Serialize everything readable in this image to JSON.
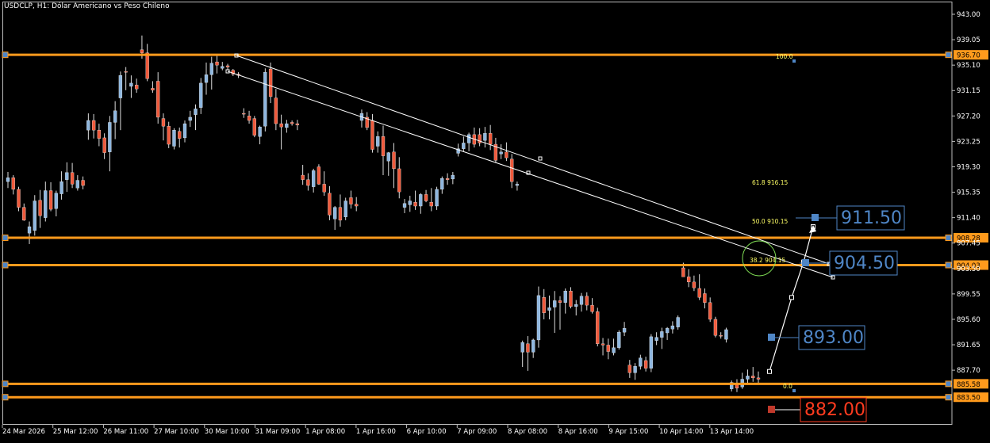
{
  "header": {
    "symbol": "USDCLP",
    "timeframe": "H1",
    "description": "Dólar Americano vs Peso Chileno"
  },
  "colors": {
    "background": "#000000",
    "bull": "#8fb7df",
    "bear": "#ef5a3c",
    "level": "#ff9a1c",
    "trend": "#ffffff",
    "fib_text": "#ffff66",
    "box_text": "#4f86c6",
    "box_red": "#ff3b1f"
  },
  "chart_data": {
    "type": "candlestick",
    "symbol": "USDCLP",
    "timeframe": "H1",
    "y_ticks": [
      943.0,
      939.05,
      935.1,
      931.15,
      927.2,
      923.25,
      919.3,
      915.35,
      911.4,
      907.45,
      903.5,
      899.55,
      895.6,
      891.65,
      887.7
    ],
    "y_range": [
      882.0,
      944.6
    ],
    "x_ticks": [
      "24 Mar 2026",
      "25 Mar 12:00",
      "26 Mar 11:00",
      "27 Mar 10:00",
      "30 Mar 10:00",
      "31 Mar 09:00",
      "1 Apr 08:00",
      "1 Apr 16:00",
      "6 Apr 10:00",
      "7 Apr 09:00",
      "8 Apr 08:00",
      "8 Apr 16:00",
      "9 Apr 15:00",
      "10 Apr 14:00",
      "13 Apr 14:00"
    ],
    "levels": [
      {
        "price": 936.7,
        "label": "936.70"
      },
      {
        "price": 908.28,
        "label": "908.28"
      },
      {
        "price": 904.03,
        "label": "904.03"
      },
      {
        "price": 885.58,
        "label": "885.58"
      },
      {
        "price": 883.5,
        "label": "883.50"
      }
    ],
    "fibonacci": [
      {
        "ratio": "100.0",
        "price": ""
      },
      {
        "ratio": "61.8",
        "price": "916.15"
      },
      {
        "ratio": "50.0",
        "price": "910.15"
      },
      {
        "ratio": "38.2",
        "price": "904.15"
      },
      {
        "ratio": "0.0",
        "price": ""
      }
    ],
    "projection_boxes": [
      {
        "label": "911.50",
        "price": 911.5
      },
      {
        "label": "904.50",
        "price": 904.5
      },
      {
        "label": "893.00",
        "price": 893.0
      },
      {
        "label": "882.00",
        "price": 882.0
      }
    ],
    "projection_path": [
      887.5,
      899.0,
      904.5,
      910.0
    ],
    "candles": [
      [
        917.0,
        918.5,
        916.0,
        917.6
      ],
      [
        917.6,
        918.0,
        915.0,
        915.8
      ],
      [
        915.8,
        916.2,
        912.4,
        913.0
      ],
      [
        913.0,
        913.6,
        910.9,
        911.0
      ],
      [
        909.0,
        910.8,
        907.3,
        910.0
      ],
      [
        909.4,
        914.9,
        908.6,
        914.0
      ],
      [
        914.1,
        915.7,
        909.8,
        911.7
      ],
      [
        911.4,
        917.0,
        910.8,
        915.6
      ],
      [
        915.6,
        916.9,
        912.4,
        912.7
      ],
      [
        912.8,
        915.6,
        911.6,
        915.2
      ],
      [
        915.1,
        918.6,
        914.2,
        917.0
      ],
      [
        917.3,
        920.0,
        915.4,
        918.4
      ],
      [
        918.4,
        919.9,
        916.0,
        916.6
      ],
      [
        916.0,
        918.0,
        915.6,
        917.2
      ],
      [
        917.2,
        917.8,
        915.8,
        916.4
      ],
      [
        925.0,
        927.6,
        923.5,
        926.5
      ],
      [
        926.5,
        927.5,
        923.7,
        925.0
      ],
      [
        925.0,
        926.0,
        922.5,
        923.7
      ],
      [
        923.8,
        924.5,
        920.5,
        921.5
      ],
      [
        921.6,
        927.2,
        918.6,
        926.2
      ],
      [
        926.2,
        929.5,
        923.6,
        928.0
      ],
      [
        930.0,
        934.1,
        925.0,
        933.5
      ],
      [
        934.1,
        934.8,
        931.2,
        934.0
      ],
      [
        931.8,
        933.5,
        930.0,
        932.3
      ],
      [
        932.0,
        933.0,
        930.8,
        931.4
      ],
      [
        937.5,
        939.7,
        936.1,
        937.0
      ],
      [
        937.0,
        938.4,
        932.6,
        933.0
      ],
      [
        931.5,
        932.6,
        930.8,
        931.2
      ],
      [
        932.6,
        934.0,
        926.0,
        927.0
      ],
      [
        926.8,
        927.6,
        923.4,
        925.6
      ],
      [
        925.6,
        926.3,
        922.2,
        922.8
      ],
      [
        922.5,
        925.3,
        922.0,
        925.0
      ],
      [
        924.8,
        925.4,
        922.3,
        923.7
      ],
      [
        923.8,
        926.5,
        923.1,
        926.0
      ],
      [
        926.5,
        928.0,
        925.5,
        927.0
      ],
      [
        927.4,
        929.0,
        925.0,
        928.3
      ],
      [
        928.5,
        933.1,
        927.5,
        932.3
      ],
      [
        932.4,
        935.5,
        930.5,
        933.6
      ],
      [
        933.6,
        936.4,
        931.3,
        935.4
      ],
      [
        935.6,
        936.6,
        933.8,
        935.1
      ],
      [
        934.6,
        935.6,
        934.3,
        934.9
      ],
      [
        935.0,
        935.3,
        934.4,
        934.8
      ],
      [
        934.3,
        934.5,
        933.4,
        933.7
      ],
      [
        933.7,
        934.0,
        933.1,
        933.5
      ],
      [
        927.6,
        928.4,
        926.9,
        927.5
      ],
      [
        927.2,
        928.0,
        926.0,
        926.5
      ],
      [
        926.8,
        927.2,
        923.9,
        924.2
      ],
      [
        924.0,
        925.7,
        922.8,
        925.5
      ],
      [
        925.6,
        934.6,
        924.8,
        934.0
      ],
      [
        934.5,
        935.5,
        929.2,
        930.2
      ],
      [
        930.0,
        931.4,
        925.0,
        926.0
      ],
      [
        926.0,
        927.4,
        922.0,
        925.5
      ],
      [
        925.4,
        926.6,
        924.6,
        926.0
      ],
      [
        926.2,
        926.5,
        925.7,
        926.0
      ],
      [
        926.0,
        926.6,
        925.0,
        925.8
      ],
      [
        918.0,
        919.6,
        916.5,
        917.3
      ],
      [
        917.3,
        918.3,
        915.6,
        916.4
      ],
      [
        916.2,
        919.0,
        915.3,
        918.7
      ],
      [
        919.3,
        919.7,
        916.5,
        916.6
      ],
      [
        916.6,
        918.6,
        914.8,
        915.4
      ],
      [
        915.2,
        916.3,
        911.0,
        911.8
      ],
      [
        911.2,
        913.2,
        909.5,
        913.0
      ],
      [
        913.0,
        915.0,
        910.0,
        911.0
      ],
      [
        911.5,
        914.5,
        911.0,
        914.0
      ],
      [
        914.5,
        915.6,
        912.8,
        913.5
      ],
      [
        913.5,
        914.6,
        912.4,
        913.2
      ],
      [
        926.5,
        928.2,
        925.4,
        927.6
      ],
      [
        927.0,
        927.8,
        925.0,
        925.4
      ],
      [
        926.5,
        927.5,
        921.5,
        922.0
      ],
      [
        922.5,
        924.8,
        921.5,
        924.0
      ],
      [
        924.0,
        925.7,
        918.0,
        921.0
      ],
      [
        920.2,
        921.6,
        917.9,
        921.5
      ],
      [
        921.6,
        923.0,
        916.0,
        919.0
      ],
      [
        919.0,
        920.8,
        914.4,
        915.4
      ],
      [
        913.0,
        914.3,
        912.1,
        913.6
      ],
      [
        913.4,
        914.8,
        912.3,
        914.0
      ],
      [
        913.8,
        915.6,
        912.6,
        913.2
      ],
      [
        913.2,
        915.2,
        912.0,
        915.0
      ],
      [
        915.0,
        915.7,
        913.8,
        914.0
      ],
      [
        913.8,
        916.0,
        912.4,
        913.2
      ],
      [
        913.2,
        916.2,
        912.6,
        915.8
      ],
      [
        915.8,
        917.8,
        915.1,
        917.5
      ],
      [
        917.5,
        918.3,
        916.5,
        917.3
      ],
      [
        917.4,
        918.5,
        916.6,
        918.0
      ],
      [
        921.4,
        922.9,
        920.9,
        922.1
      ],
      [
        922.1,
        924.0,
        921.6,
        923.0
      ],
      [
        923.0,
        924.6,
        921.7,
        924.3
      ],
      [
        924.3,
        925.4,
        922.3,
        922.8
      ],
      [
        924.3,
        925.3,
        922.5,
        923.0
      ],
      [
        923.4,
        925.5,
        922.3,
        924.5
      ],
      [
        924.5,
        925.8,
        921.9,
        922.8
      ],
      [
        922.8,
        923.8,
        919.9,
        920.3
      ],
      [
        921.3,
        922.8,
        920.5,
        921.6
      ],
      [
        921.6,
        923.1,
        920.2,
        920.7
      ],
      [
        920.5,
        921.3,
        916.0,
        917.0
      ],
      [
        916.4,
        917.0,
        915.6,
        916.6
      ],
      [
        890.5,
        892.3,
        888.2,
        892.0
      ],
      [
        891.8,
        893.0,
        887.6,
        890.5
      ],
      [
        890.5,
        892.6,
        889.6,
        892.4
      ],
      [
        892.4,
        900.7,
        891.2,
        899.3
      ],
      [
        899.0,
        900.3,
        895.6,
        896.6
      ],
      [
        897.0,
        899.3,
        895.6,
        897.4
      ],
      [
        897.5,
        900.0,
        893.5,
        898.5
      ],
      [
        898.5,
        899.2,
        894.0,
        898.2
      ],
      [
        898.2,
        900.4,
        896.5,
        900.0
      ],
      [
        900.0,
        900.6,
        897.3,
        897.6
      ],
      [
        897.6,
        898.6,
        896.2,
        897.9
      ],
      [
        897.9,
        899.7,
        896.8,
        899.2
      ],
      [
        899.2,
        899.8,
        897.0,
        897.8
      ],
      [
        897.8,
        898.9,
        896.5,
        896.8
      ],
      [
        896.8,
        897.4,
        891.4,
        891.8
      ],
      [
        891.8,
        892.7,
        890.0,
        891.6
      ],
      [
        891.6,
        892.6,
        889.4,
        890.6
      ],
      [
        890.4,
        892.6,
        890.0,
        891.2
      ],
      [
        891.2,
        893.9,
        890.9,
        893.6
      ],
      [
        893.6,
        895.2,
        893.0,
        894.2
      ],
      [
        888.5,
        889.3,
        886.5,
        887.3
      ],
      [
        887.3,
        888.8,
        886.2,
        888.3
      ],
      [
        888.3,
        890.1,
        887.8,
        889.6
      ],
      [
        889.2,
        889.8,
        887.5,
        888.0
      ],
      [
        888.0,
        893.3,
        887.4,
        892.9
      ],
      [
        892.3,
        893.6,
        891.6,
        892.8
      ],
      [
        892.8,
        894.3,
        891.0,
        893.7
      ],
      [
        893.5,
        894.4,
        892.4,
        894.2
      ],
      [
        894.1,
        895.3,
        893.4,
        894.6
      ],
      [
        894.4,
        896.2,
        894.0,
        895.9
      ],
      [
        903.6,
        904.4,
        902.6,
        902.2
      ],
      [
        902.2,
        903.4,
        900.6,
        901.4
      ],
      [
        901.4,
        902.4,
        900.0,
        900.5
      ],
      [
        900.4,
        902.6,
        898.6,
        899.0
      ],
      [
        899.6,
        900.4,
        897.3,
        898.2
      ],
      [
        898.2,
        899.0,
        895.2,
        895.6
      ],
      [
        895.6,
        896.0,
        892.8,
        893.1
      ],
      [
        893.1,
        893.6,
        892.6,
        893.0
      ],
      [
        892.5,
        894.3,
        892.0,
        894.0
      ],
      [
        884.8,
        886.1,
        884.4,
        885.8
      ],
      [
        885.5,
        886.3,
        884.3,
        884.9
      ],
      [
        885.1,
        887.3,
        884.8,
        886.3
      ],
      [
        886.3,
        887.8,
        885.5,
        886.8
      ],
      [
        886.8,
        888.2,
        885.9,
        886.5
      ],
      [
        886.5,
        887.5,
        885.6,
        886.3
      ]
    ]
  }
}
